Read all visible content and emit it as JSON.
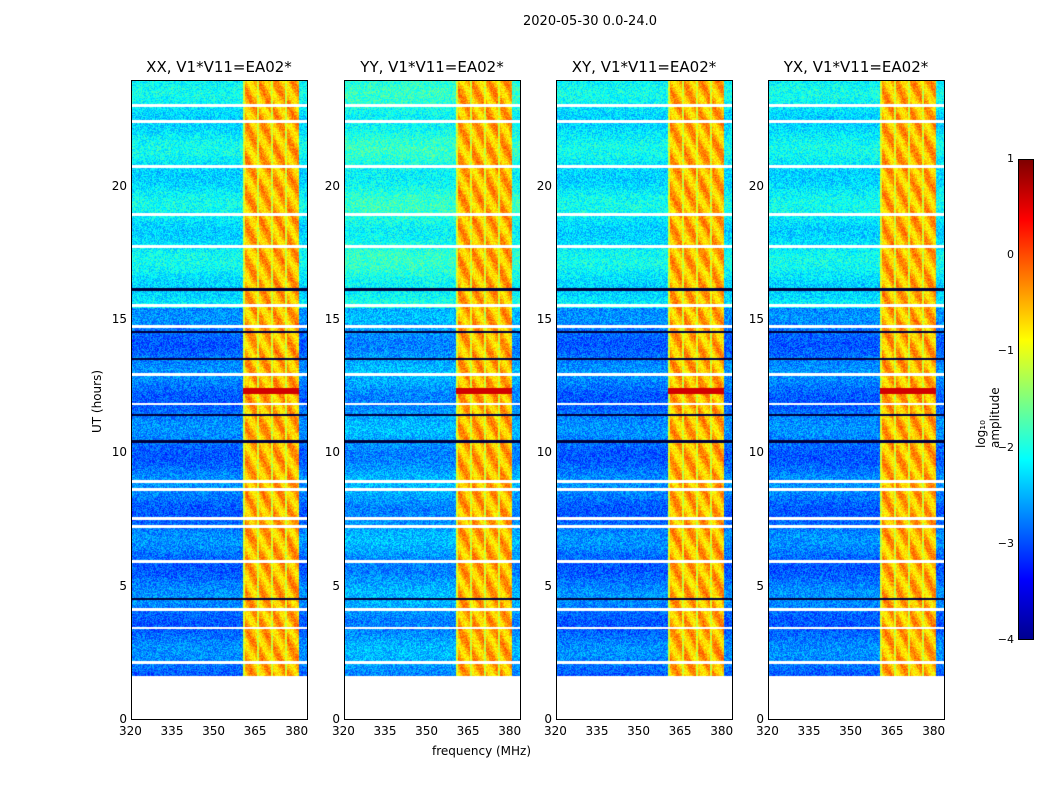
{
  "figure": {
    "suptitle": "2020-05-30 0.0-24.0"
  },
  "chart_data": {
    "type": "heatmap",
    "panels": [
      {
        "title": "XX, V1*V11=EA02*"
      },
      {
        "title": "YY, V1*V11=EA02*"
      },
      {
        "title": "XY, V1*V11=EA02*"
      },
      {
        "title": "YX, V1*V11=EA02*"
      }
    ],
    "xlabel": "frequency (MHz)",
    "ylabel": "UT (hours)",
    "xticks": [
      "320",
      "335",
      "350",
      "365",
      "380"
    ],
    "yticks": [
      "0",
      "5",
      "10",
      "15",
      "20"
    ],
    "xlim": [
      320,
      384
    ],
    "ylim": [
      0,
      24
    ],
    "data_time_range": [
      1.7,
      24
    ],
    "rfi_band_mhz": [
      360,
      380
    ],
    "background_log_amp": -2.8,
    "rfi_band_log_amp": -0.5,
    "colorbar": {
      "label": "log₁₀ amplitude",
      "ticks": [
        "1",
        "0",
        "−1",
        "−2",
        "−3",
        "−4"
      ],
      "range": [
        -4,
        1
      ],
      "colormap": "jet"
    }
  }
}
